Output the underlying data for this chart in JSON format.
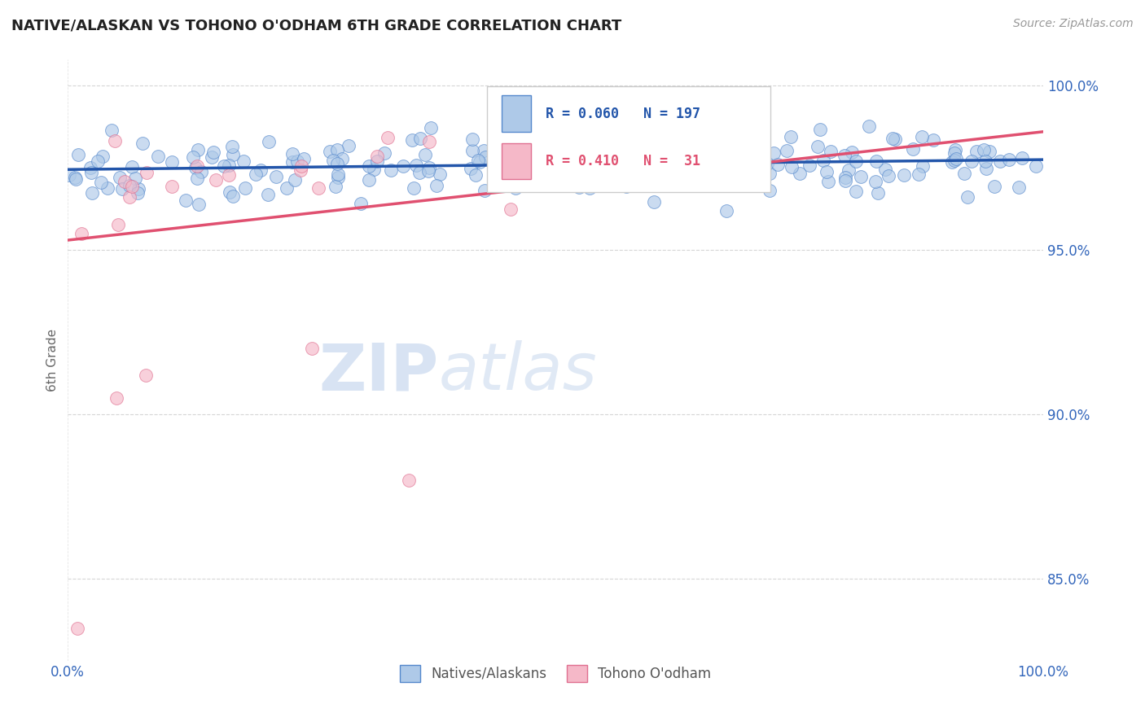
{
  "title": "NATIVE/ALASKAN VS TOHONO O'ODHAM 6TH GRADE CORRELATION CHART",
  "source_text": "Source: ZipAtlas.com",
  "ylabel": "6th Grade",
  "xlim": [
    0.0,
    1.0
  ],
  "ylim": [
    0.825,
    1.008
  ],
  "yticks": [
    0.85,
    0.9,
    0.95,
    1.0
  ],
  "ytick_labels": [
    "85.0%",
    "90.0%",
    "95.0%",
    "100.0%"
  ],
  "xticks": [
    0.0,
    1.0
  ],
  "xtick_labels": [
    "0.0%",
    "100.0%"
  ],
  "blue_R": 0.06,
  "blue_N": 197,
  "pink_R": 0.41,
  "pink_N": 31,
  "blue_color": "#aec9e8",
  "blue_edge_color": "#5588cc",
  "blue_line_color": "#2255aa",
  "pink_color": "#f5b8c8",
  "pink_edge_color": "#e07090",
  "pink_line_color": "#e05070",
  "legend_label_blue": "Natives/Alaskans",
  "legend_label_pink": "Tohono O'odham",
  "watermark_zip": "ZIP",
  "watermark_atlas": "atlas",
  "background_color": "#ffffff",
  "grid_color": "#cccccc",
  "title_color": "#222222",
  "axis_label_color": "#3366bb",
  "blue_trendline_x": [
    0.0,
    1.0
  ],
  "blue_trendline_y": [
    0.9745,
    0.9775
  ],
  "pink_trendline_x": [
    0.0,
    1.0
  ],
  "pink_trendline_y": [
    0.953,
    0.986
  ]
}
